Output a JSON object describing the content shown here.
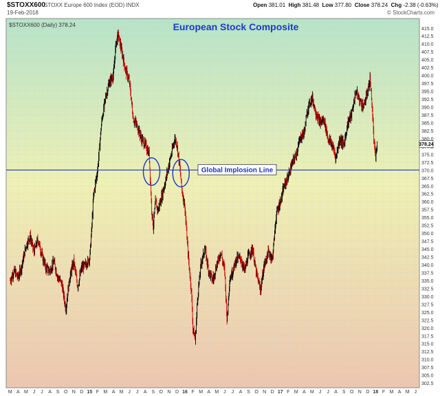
{
  "header": {
    "symbol": "$STOXX600",
    "description": "STOXX Europe 600 Index (EOD) INDX",
    "date": "19-Feb-2018",
    "open_label": "Open",
    "open": "381.01",
    "high_label": "High",
    "high": "381.48",
    "low_label": "Low",
    "low": "377.80",
    "close_label": "Close",
    "close": "378.24",
    "chg_label": "Chg",
    "chg": "-2.38 (-0.63%)",
    "brand": "© StockCharts.com"
  },
  "colors": {
    "gradient_top": "#b7e3c9",
    "gradient_mid": "#eef0b4",
    "gradient_bottom": "#ecc6b0",
    "bar": "#000000",
    "wick": "#cc0000",
    "implosion_line": "#2233bb",
    "circle": "#1a33cc",
    "title": "#1a3ad0"
  },
  "chart_data": {
    "type": "line",
    "title": "European Stock Composite",
    "series_label": "$STOXX600 (Daily) 378.24",
    "last_value_tag": "378.24",
    "annotation": "Global Implosion Line",
    "implosion_level": 370.0,
    "ylim": [
      301,
      418
    ],
    "y_ticks": [
      "302.5",
      "305.0",
      "307.5",
      "310.0",
      "312.5",
      "315.0",
      "317.5",
      "320.0",
      "322.5",
      "325.0",
      "327.5",
      "330.0",
      "332.5",
      "335.0",
      "337.5",
      "340.0",
      "342.5",
      "345.0",
      "347.5",
      "350.0",
      "352.5",
      "355.0",
      "357.5",
      "360.0",
      "362.5",
      "365.0",
      "367.5",
      "370.0",
      "372.5",
      "375.0",
      "377.5",
      "380.0",
      "382.5",
      "385.0",
      "387.5",
      "390.0",
      "392.5",
      "395.0",
      "397.5",
      "400.0",
      "402.5",
      "405.0",
      "407.5",
      "410.0",
      "412.5",
      "415.0"
    ],
    "x_labels": [
      "M",
      "A",
      "M",
      "J",
      "J",
      "A",
      "S",
      "O",
      "N",
      "D",
      "15",
      "F",
      "M",
      "A",
      "M",
      "J",
      "J",
      "A",
      "S",
      "O",
      "N",
      "D",
      "16",
      "F",
      "M",
      "A",
      "M",
      "J",
      "J",
      "A",
      "S",
      "O",
      "N",
      "D",
      "17",
      "F",
      "M",
      "A",
      "M",
      "J",
      "J",
      "A",
      "S",
      "O",
      "N",
      "D",
      "18",
      "F",
      "M",
      "A",
      "M",
      "J"
    ],
    "x_label_bold": [
      "15",
      "16",
      "17",
      "18"
    ],
    "circles": [
      {
        "label": "Aug 2015 low cluster",
        "month_index": 17.8,
        "value": 369.5
      },
      {
        "label": "Dec 2015 low cluster",
        "month_index": 21.5,
        "value": 369.0
      }
    ],
    "price_points": [
      [
        0,
        335
      ],
      [
        0.5,
        338
      ],
      [
        1,
        336
      ],
      [
        1.5,
        340
      ],
      [
        2,
        346
      ],
      [
        2.5,
        349
      ],
      [
        3,
        344
      ],
      [
        3.5,
        348
      ],
      [
        4,
        343
      ],
      [
        4.5,
        339
      ],
      [
        5,
        338
      ],
      [
        5.5,
        341
      ],
      [
        6,
        336
      ],
      [
        6.5,
        334
      ],
      [
        7,
        326
      ],
      [
        7.5,
        336
      ],
      [
        8,
        341
      ],
      [
        8.5,
        333
      ],
      [
        9,
        339
      ],
      [
        9.5,
        340
      ],
      [
        10,
        342
      ],
      [
        10.2,
        349
      ],
      [
        10.5,
        362
      ],
      [
        11,
        370
      ],
      [
        11.5,
        385
      ],
      [
        12,
        393
      ],
      [
        12.5,
        398
      ],
      [
        13,
        400
      ],
      [
        13.3,
        410
      ],
      [
        13.6,
        413
      ],
      [
        14,
        408
      ],
      [
        14.5,
        402
      ],
      [
        15,
        398
      ],
      [
        15.5,
        386
      ],
      [
        16,
        384
      ],
      [
        16.5,
        380
      ],
      [
        17,
        378
      ],
      [
        17.5,
        375
      ],
      [
        17.8,
        358
      ],
      [
        18,
        352
      ],
      [
        18.3,
        360
      ],
      [
        18.6,
        357
      ],
      [
        19,
        361
      ],
      [
        19.5,
        366
      ],
      [
        20,
        372
      ],
      [
        20.3,
        375
      ],
      [
        20.7,
        380
      ],
      [
        21,
        378
      ],
      [
        21.3,
        372
      ],
      [
        21.6,
        364
      ],
      [
        22,
        358
      ],
      [
        22.2,
        350
      ],
      [
        22.5,
        340
      ],
      [
        22.8,
        332
      ],
      [
        23,
        320
      ],
      [
        23.3,
        316
      ],
      [
        23.6,
        330
      ],
      [
        24,
        340
      ],
      [
        24.5,
        345
      ],
      [
        25,
        338
      ],
      [
        25.5,
        335
      ],
      [
        26,
        340
      ],
      [
        26.5,
        344
      ],
      [
        27,
        338
      ],
      [
        27.3,
        322
      ],
      [
        27.6,
        335
      ],
      [
        28,
        338
      ],
      [
        28.5,
        342
      ],
      [
        29,
        342
      ],
      [
        29.5,
        338
      ],
      [
        30,
        343
      ],
      [
        30.5,
        345
      ],
      [
        31,
        337
      ],
      [
        31.5,
        332
      ],
      [
        32,
        340
      ],
      [
        32.5,
        344
      ],
      [
        33,
        342
      ],
      [
        33.5,
        356
      ],
      [
        34,
        360
      ],
      [
        34.5,
        365
      ],
      [
        35,
        368
      ],
      [
        35.5,
        372
      ],
      [
        36,
        375
      ],
      [
        36.5,
        380
      ],
      [
        37,
        382
      ],
      [
        37.5,
        390
      ],
      [
        38,
        393
      ],
      [
        38.5,
        388
      ],
      [
        39,
        385
      ],
      [
        39.5,
        386
      ],
      [
        40,
        380
      ],
      [
        40.5,
        378
      ],
      [
        41,
        374
      ],
      [
        41.5,
        380
      ],
      [
        42,
        378
      ],
      [
        42.5,
        385
      ],
      [
        43,
        388
      ],
      [
        43.5,
        395
      ],
      [
        44,
        392
      ],
      [
        44.5,
        390
      ],
      [
        45,
        395
      ],
      [
        45.3,
        399
      ],
      [
        45.6,
        388
      ],
      [
        45.8,
        378
      ],
      [
        46,
        374
      ],
      [
        46.2,
        378
      ]
    ]
  }
}
